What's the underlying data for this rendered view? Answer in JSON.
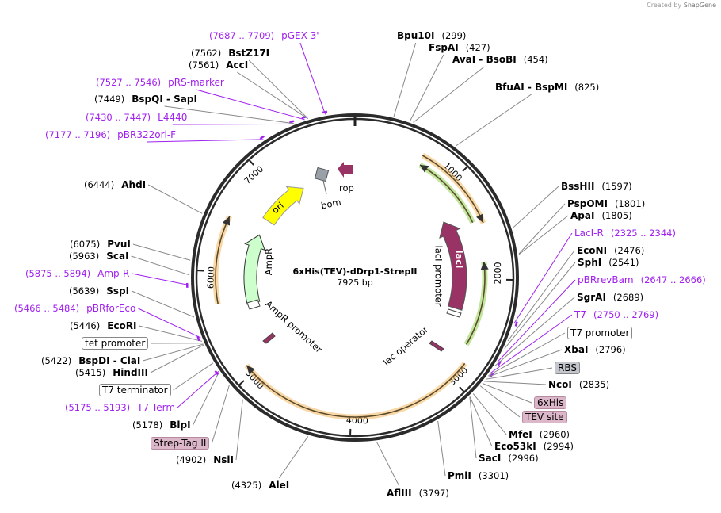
{
  "header": {
    "created_by": "Created by",
    "brand": "SnapGene"
  },
  "plasmid": {
    "name": "6xHis(TEV)-dDrp1-StrepII",
    "length": "7925 bp",
    "total_bp": 7925
  },
  "ticks": [
    {
      "label": "1000",
      "bp": 1000
    },
    {
      "label": "2000",
      "bp": 2000
    },
    {
      "label": "3000",
      "bp": 3000
    },
    {
      "label": "4000",
      "bp": 4000
    },
    {
      "label": "5000",
      "bp": 5000
    },
    {
      "label": "6000",
      "bp": 6000
    },
    {
      "label": "7000",
      "bp": 7000
    }
  ],
  "features": {
    "ori": "ori",
    "ampr": "AmpR",
    "ampr_promoter": "AmpR promoter",
    "rop": "rop",
    "bom": "bom",
    "laci": "lacI",
    "laci_promoter": "lacI promoter",
    "lac_operator": "lac operator"
  },
  "colors": {
    "ori": "#ffff00",
    "ampr": "#ccffcc",
    "laci": "#993366",
    "primer": "#a020f0",
    "orange": "#f4b860",
    "green": "#8fd14f"
  },
  "sites": [
    {
      "name": "Bpu10I",
      "pos": "(299)",
      "kind": "enzyme"
    },
    {
      "name": "FspAI",
      "pos": "(427)",
      "kind": "enzyme"
    },
    {
      "name": "AvaI  - BsoBI",
      "pos": "(454)",
      "kind": "enzyme"
    },
    {
      "name": "BfuAI  - BspMI",
      "pos": "(825)",
      "kind": "enzyme"
    },
    {
      "name": "BssHII",
      "pos": "(1597)",
      "kind": "enzyme"
    },
    {
      "name": "PspOMI",
      "pos": "(1801)",
      "kind": "enzyme"
    },
    {
      "name": "ApaI",
      "pos": "(1805)",
      "kind": "enzyme"
    },
    {
      "name": "LacI-R",
      "pos": "(2325 .. 2344)",
      "kind": "primer"
    },
    {
      "name": "EcoNI",
      "pos": "(2476)",
      "kind": "enzyme"
    },
    {
      "name": "SphI",
      "pos": "(2541)",
      "kind": "enzyme"
    },
    {
      "name": "pBRrevBam",
      "pos": "(2647 .. 2666)",
      "kind": "primer"
    },
    {
      "name": "SgrAI",
      "pos": "(2689)",
      "kind": "enzyme"
    },
    {
      "name": "T7",
      "pos": "(2750 .. 2769)",
      "kind": "primer"
    },
    {
      "name": "T7 promoter",
      "kind": "box"
    },
    {
      "name": "XbaI",
      "pos": "(2796)",
      "kind": "enzyme"
    },
    {
      "name": "RBS",
      "kind": "box-gray"
    },
    {
      "name": "NcoI",
      "pos": "(2835)",
      "kind": "enzyme"
    },
    {
      "name": "6xHis",
      "kind": "box-pink"
    },
    {
      "name": "TEV site",
      "kind": "box-pink"
    },
    {
      "name": "MfeI",
      "pos": "(2960)",
      "kind": "enzyme"
    },
    {
      "name": "Eco53kI",
      "pos": "(2994)",
      "kind": "enzyme"
    },
    {
      "name": "SacI",
      "pos": "(2996)",
      "kind": "enzyme"
    },
    {
      "name": "PmlI",
      "pos": "(3301)",
      "kind": "enzyme"
    },
    {
      "name": "AflIII",
      "pos": "(3797)",
      "kind": "enzyme"
    },
    {
      "name": "AleI",
      "pos": "(4325)",
      "kind": "enzyme"
    },
    {
      "name": "NsiI",
      "pos": "(4902)",
      "kind": "enzyme"
    },
    {
      "name": "Strep-Tag II",
      "kind": "box-pink"
    },
    {
      "name": "BlpI",
      "pos": "(5178)",
      "kind": "enzyme"
    },
    {
      "name": "T7 Term",
      "pos": "(5175 .. 5193)",
      "kind": "primer"
    },
    {
      "name": "T7 terminator",
      "kind": "box"
    },
    {
      "name": "HindIII",
      "pos": "(5415)",
      "kind": "enzyme"
    },
    {
      "name": "BspDI  - ClaI",
      "pos": "(5422)",
      "kind": "enzyme"
    },
    {
      "name": "tet promoter",
      "kind": "box"
    },
    {
      "name": "EcoRI",
      "pos": "(5446)",
      "kind": "enzyme"
    },
    {
      "name": "pBRforEco",
      "pos": "(5466 .. 5484)",
      "kind": "primer"
    },
    {
      "name": "SspI",
      "pos": "(5639)",
      "kind": "enzyme"
    },
    {
      "name": "Amp-R",
      "pos": "(5875 .. 5894)",
      "kind": "primer"
    },
    {
      "name": "ScaI",
      "pos": "(5963)",
      "kind": "enzyme"
    },
    {
      "name": "PvuI",
      "pos": "(6075)",
      "kind": "enzyme"
    },
    {
      "name": "AhdI",
      "pos": "(6444)",
      "kind": "enzyme"
    },
    {
      "name": "pBR322ori-F",
      "pos": "(7177 .. 7196)",
      "kind": "primer"
    },
    {
      "name": "L4440",
      "pos": "(7430 .. 7447)",
      "kind": "primer"
    },
    {
      "name": "BspQI  - SapI",
      "pos": "(7449)",
      "kind": "enzyme"
    },
    {
      "name": "pRS-marker",
      "pos": "(7527 .. 7546)",
      "kind": "primer"
    },
    {
      "name": "AccI",
      "pos": "(7561)",
      "kind": "enzyme"
    },
    {
      "name": "BstZ17I",
      "pos": "(7562)",
      "kind": "enzyme"
    },
    {
      "name": "pGEX 3'",
      "pos": "(7687 .. 7709)",
      "kind": "primer"
    }
  ]
}
